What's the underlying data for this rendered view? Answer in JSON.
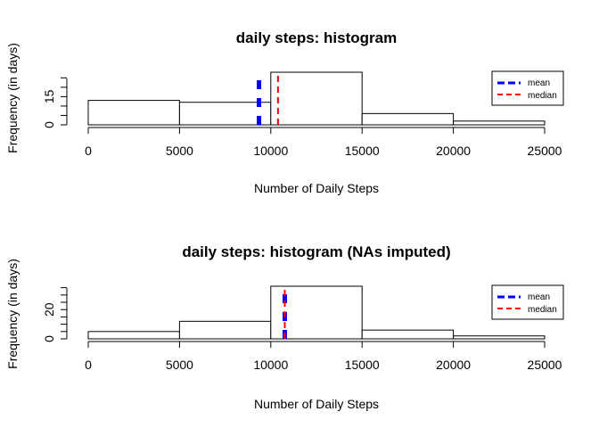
{
  "chart_data": [
    {
      "type": "bar",
      "title": "daily steps: histogram",
      "xlabel": "Number of Daily Steps",
      "ylabel": "Frequency (in days)",
      "bins": [
        [
          0,
          5000
        ],
        [
          5000,
          10000
        ],
        [
          10000,
          15000
        ],
        [
          15000,
          20000
        ],
        [
          20000,
          25000
        ]
      ],
      "values": [
        13,
        12,
        28,
        6,
        2
      ],
      "xlim": [
        0,
        25000
      ],
      "ylim": [
        0,
        28
      ],
      "xticks": [
        0,
        5000,
        10000,
        15000,
        20000,
        25000
      ],
      "yticks": [
        0,
        15
      ],
      "lines": [
        {
          "name": "mean",
          "value": 9354,
          "color": "#0000ff",
          "style": "dashed-thick"
        },
        {
          "name": "median",
          "value": 10395,
          "color": "#ff0000",
          "style": "dashed"
        }
      ],
      "legend": {
        "position": "top-right",
        "entries": [
          "mean",
          "median"
        ]
      }
    },
    {
      "type": "bar",
      "title": "daily steps: histogram (NAs imputed)",
      "xlabel": "Number of Daily Steps",
      "ylabel": "Frequency (in days)",
      "bins": [
        [
          0,
          5000
        ],
        [
          5000,
          10000
        ],
        [
          10000,
          15000
        ],
        [
          15000,
          20000
        ],
        [
          20000,
          25000
        ]
      ],
      "values": [
        5,
        12,
        36,
        6,
        2
      ],
      "xlim": [
        0,
        25000
      ],
      "ylim": [
        0,
        36
      ],
      "xticks": [
        0,
        5000,
        10000,
        15000,
        20000,
        25000
      ],
      "yticks": [
        0,
        20
      ],
      "lines": [
        {
          "name": "mean",
          "value": 10766,
          "color": "#0000ff",
          "style": "dashed-thick"
        },
        {
          "name": "median",
          "value": 10766,
          "color": "#ff0000",
          "style": "dashed"
        }
      ],
      "legend": {
        "position": "top-right",
        "entries": [
          "mean",
          "median"
        ]
      }
    }
  ]
}
